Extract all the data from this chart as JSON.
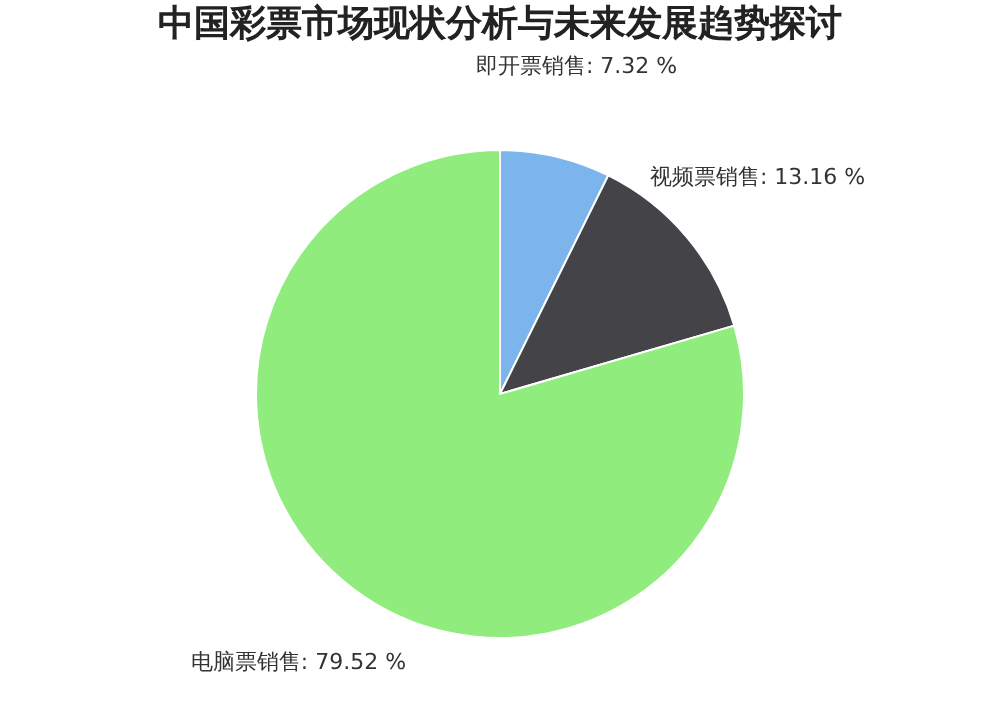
{
  "chart_data": {
    "type": "pie",
    "title": "中国彩票市场现状分析与未来发展趋势探讨",
    "categories": [
      "即开票销售",
      "视频票销售",
      "电脑票销售"
    ],
    "values": [
      7.32,
      13.16,
      79.52
    ],
    "colors": [
      "#7cb5ec",
      "#434348",
      "#90ed7d"
    ],
    "value_labels": [
      "7.32 %",
      "13.16 %",
      "79.52 %"
    ]
  }
}
